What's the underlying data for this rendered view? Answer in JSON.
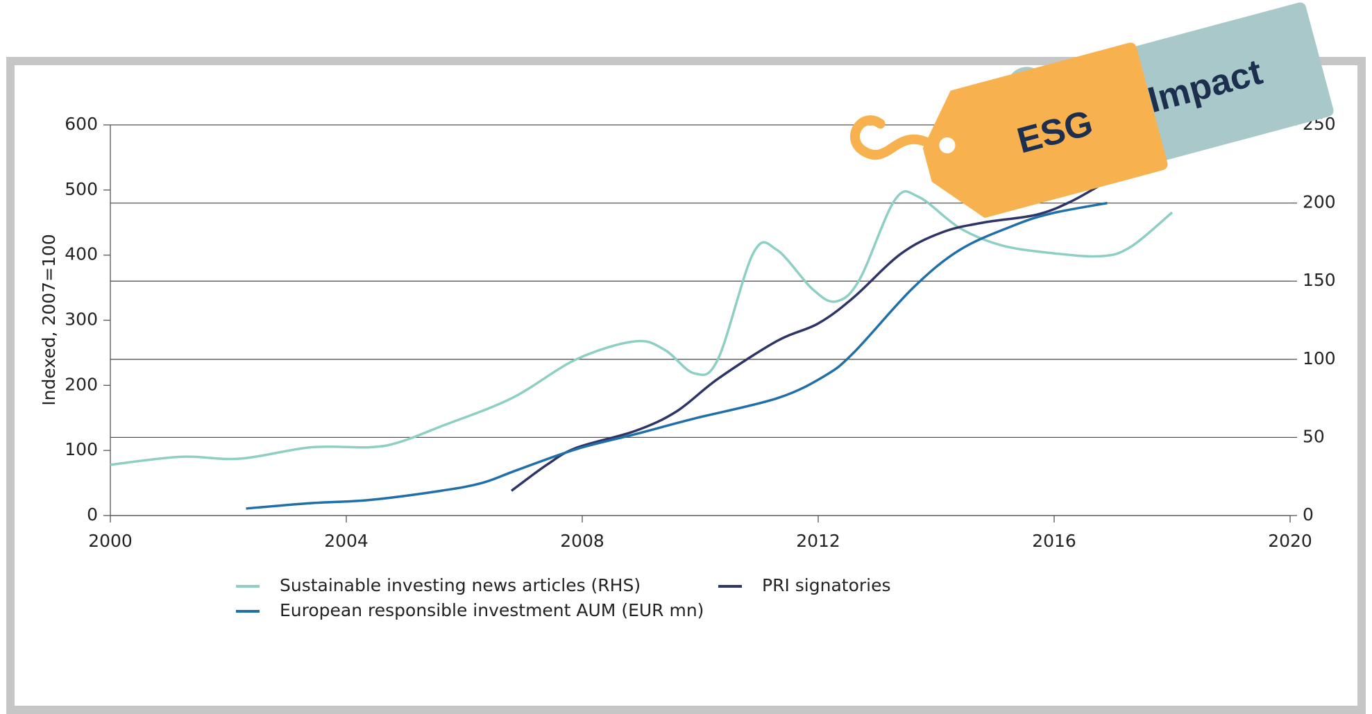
{
  "chart_data": {
    "type": "line",
    "ylabel": "Indexed, 2007=100",
    "xlim": [
      2000,
      2020
    ],
    "xticks": [
      2000,
      2004,
      2008,
      2012,
      2016,
      2020
    ],
    "ylim": [
      0,
      600
    ],
    "yticks": [
      0,
      100,
      200,
      300,
      400,
      500,
      600
    ],
    "y2lim": [
      0,
      250
    ],
    "y2ticks": [
      0,
      50,
      100,
      150,
      200,
      250
    ],
    "grid": true,
    "series": [
      {
        "name": "Sustainable investing news articles (RHS)",
        "color": "#8dcfc3",
        "axis": "y2",
        "x": [
          2000,
          2001.2,
          2002.2,
          2003.4,
          2004.4,
          2004.9,
          2005.6,
          2006.8,
          2007.9,
          2008.9,
          2009.4,
          2009.9,
          2010.3,
          2010.9,
          2011.3,
          2011.9,
          2012.3,
          2012.7,
          2013.3,
          2013.7,
          2014.4,
          2015.1,
          2015.95,
          2016.8,
          2017.3,
          2018.0
        ],
        "values": [
          32.5,
          37.6,
          36.4,
          43.7,
          43.7,
          47,
          57,
          75,
          100,
          111.5,
          106,
          91,
          100,
          168,
          170,
          145,
          137,
          151,
          202,
          204,
          184,
          173,
          168,
          166,
          172,
          194
        ]
      },
      {
        "name": "PRI signatories",
        "color": "#2e3466",
        "x": [
          2006.8,
          2007.4,
          2007.9,
          2008.9,
          2009.6,
          2010.3,
          2011.3,
          2012.0,
          2012.6,
          2013.4,
          2014.1,
          2014.8,
          2015.7,
          2016.3,
          2016.9
        ],
        "values": [
          38,
          78,
          104,
          130,
          160,
          210,
          268,
          295,
          335,
          402,
          435,
          450,
          462,
          483,
          514
        ]
      },
      {
        "name": "European responsible investment AUM (EUR mn)",
        "color": "#1f6fa8",
        "x": [
          2002.3,
          2003.4,
          2004.4,
          2005.6,
          2006.3,
          2006.9,
          2007.9,
          2008.9,
          2009.9,
          2011.3,
          2012.1,
          2012.6,
          2013.6,
          2014.4,
          2015.3,
          2015.95,
          2016.9
        ],
        "values": [
          10.8,
          19,
          24,
          38,
          50,
          70,
          102,
          125,
          149,
          180,
          214,
          250,
          349,
          408,
          445,
          464,
          480
        ]
      }
    ]
  },
  "tags": [
    "ESG",
    "Impact"
  ]
}
